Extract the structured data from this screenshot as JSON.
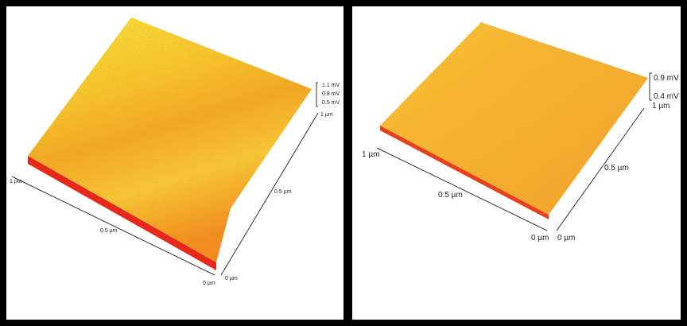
{
  "panels": [
    {
      "labels": [
        "1.1 mV",
        "0.8 mV",
        "0.5 mV",
        "1 µm",
        "0.5 µm",
        "0 µm",
        "0 µm",
        "0.5 µm",
        "1 µm"
      ]
    },
    {
      "labels": [
        "0.9 mV",
        "0.4 mV",
        "1 µm",
        "0.5 µm",
        "0 µm",
        "0 µm",
        "0.5 µm",
        "1 µm"
      ]
    }
  ]
}
